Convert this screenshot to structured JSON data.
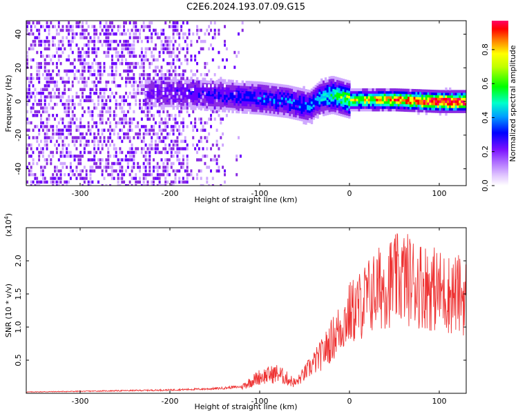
{
  "title": "C2E6.2024.193.07.09.G15",
  "chart_data": [
    {
      "type": "heatmap",
      "xlabel": "Height of straight line (km)",
      "ylabel": "Frequency (Hz)",
      "xlim": [
        -360,
        130
      ],
      "ylim": [
        -50,
        48
      ],
      "xticks": [
        -300,
        -200,
        -100,
        0,
        100
      ],
      "yticks": [
        -40,
        -20,
        0,
        20,
        40
      ],
      "colorbar": {
        "label": "Normalized spectral amplitude",
        "range": [
          0,
          0.97
        ],
        "ticks": [
          0.0,
          0.2,
          0.4,
          0.6,
          0.8
        ],
        "tick_labels": [
          "0.0",
          "0.2",
          "0.4",
          "0.6",
          "0.8"
        ],
        "colormap": [
          "#ffffff",
          "#cfa8ff",
          "#8a2be2",
          "#6a00ff",
          "#0000ff",
          "#00bfff",
          "#00ffcc",
          "#00ff00",
          "#ffff00",
          "#ff8000",
          "#ff0000",
          "#ff0066"
        ]
      },
      "band_center_hz": [
        {
          "x": -230,
          "y": 5
        },
        {
          "x": -180,
          "y": 5
        },
        {
          "x": -130,
          "y": 3
        },
        {
          "x": -100,
          "y": 2
        },
        {
          "x": -70,
          "y": 0
        },
        {
          "x": -45,
          "y": -3
        },
        {
          "x": -35,
          "y": 2
        },
        {
          "x": -20,
          "y": 4
        },
        {
          "x": 0,
          "y": 1
        },
        {
          "x": 50,
          "y": 1
        },
        {
          "x": 100,
          "y": 0
        },
        {
          "x": 130,
          "y": 0
        }
      ],
      "band_peak_amplitude": [
        {
          "x": -230,
          "y": 0.3
        },
        {
          "x": -150,
          "y": 0.35
        },
        {
          "x": -100,
          "y": 0.4
        },
        {
          "x": -40,
          "y": 0.45
        },
        {
          "x": 0,
          "y": 0.7
        },
        {
          "x": 50,
          "y": 0.85
        },
        {
          "x": 100,
          "y": 0.97
        },
        {
          "x": 130,
          "y": 0.97
        }
      ]
    },
    {
      "type": "line",
      "xlabel": "Height of straight line (km)",
      "ylabel": "SNR (10 * v/v)",
      "y_multiplier": "(x10",
      "y_multiplier_exp": "4",
      "y_multiplier_close": ")",
      "xlim": [
        -360,
        130
      ],
      "ylim": [
        0,
        2.5
      ],
      "xticks": [
        -300,
        -200,
        -100,
        0,
        100
      ],
      "yticks": [
        0.5,
        1.0,
        1.5,
        2.0
      ],
      "color": "#ee3333",
      "series": [
        {
          "x": [
            -360,
            -300,
            -200,
            -150,
            -120,
            -100,
            -80,
            -60,
            -40,
            -30,
            -20,
            -10,
            0,
            10,
            20,
            30,
            40,
            50,
            60,
            70,
            80,
            90,
            100,
            110,
            120,
            130
          ],
          "y": [
            0.02,
            0.03,
            0.05,
            0.07,
            0.1,
            0.25,
            0.3,
            0.15,
            0.45,
            0.6,
            0.8,
            1.0,
            1.2,
            1.3,
            1.45,
            1.55,
            1.65,
            1.7,
            1.75,
            1.7,
            1.65,
            1.6,
            1.55,
            1.5,
            1.5,
            1.45
          ]
        }
      ]
    }
  ]
}
